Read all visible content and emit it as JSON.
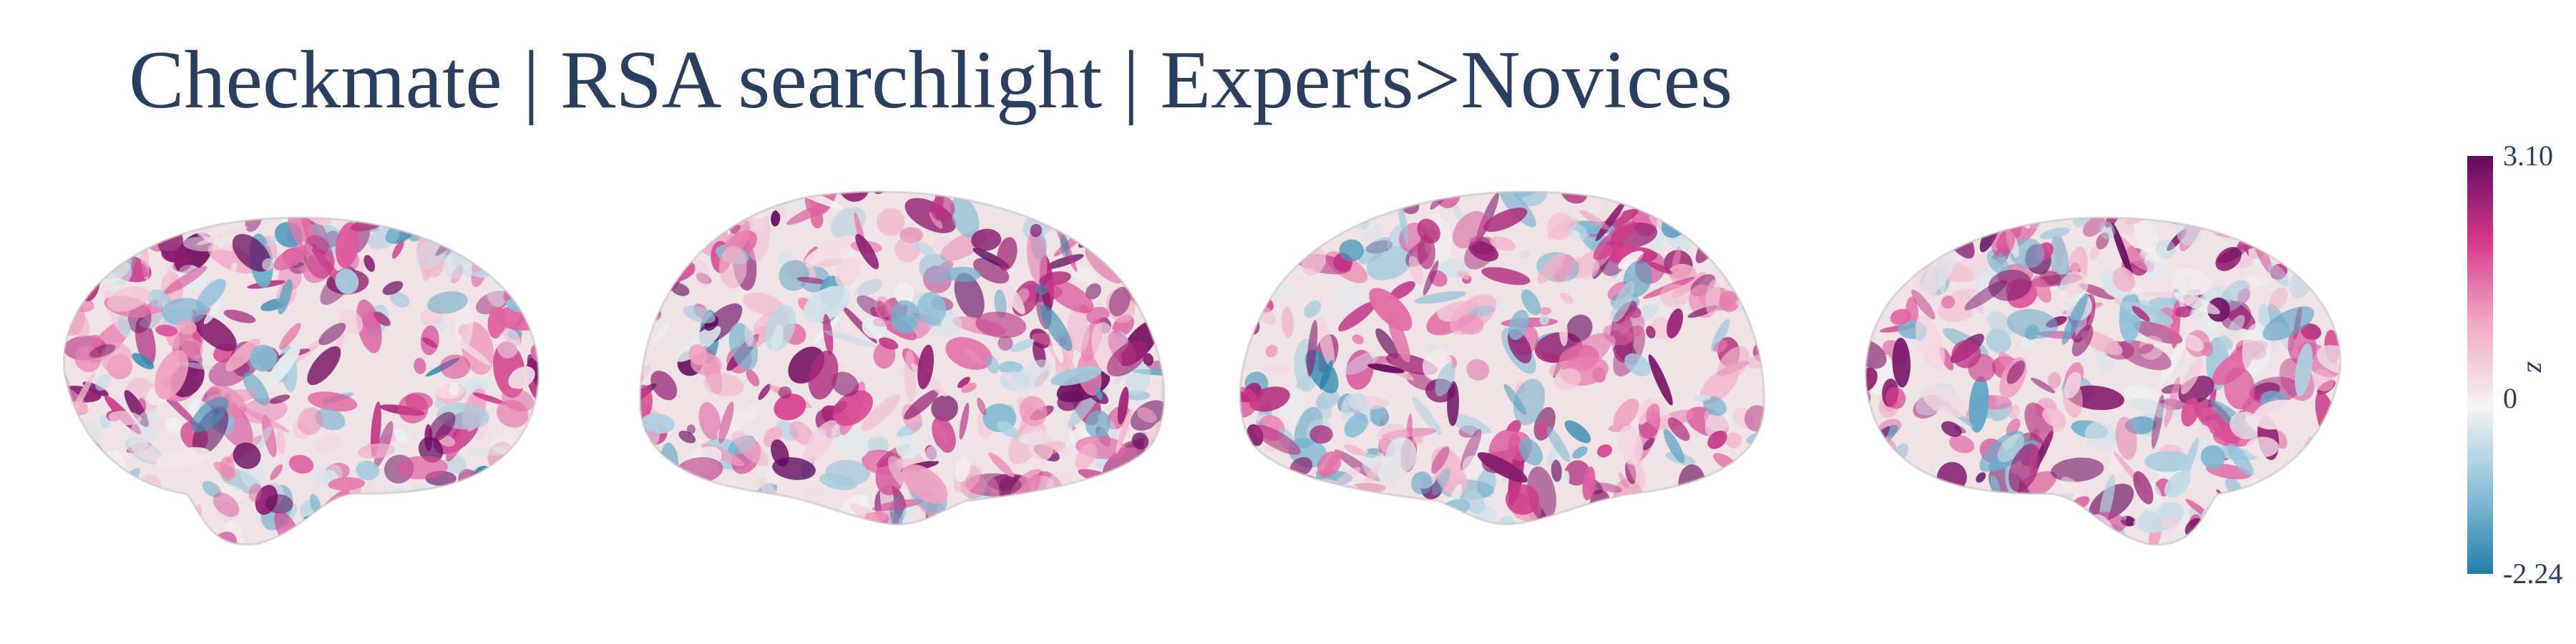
{
  "title": "Checkmate | RSA searchlight | Experts>Novices",
  "chart_data": {
    "type": "heatmap",
    "title": "Checkmate | RSA searchlight | Experts>Novices",
    "views": [
      {
        "name": "left-lateral"
      },
      {
        "name": "left-medial"
      },
      {
        "name": "right-medial"
      },
      {
        "name": "right-lateral"
      }
    ],
    "colorbar": {
      "title": "z",
      "min": -2.24,
      "max": 3.1,
      "ticks": [
        3.1,
        0,
        -2.24
      ],
      "tick_labels": [
        "3.10",
        "0",
        "-2.24"
      ],
      "colors": [
        "#1f7fa8",
        "#8fc0d8",
        "#f4f4f4",
        "#f2a9c4",
        "#d4388a",
        "#5e0a5c"
      ]
    }
  },
  "colors": {
    "title": "#2a3f5f",
    "surface_base": "#efe3e6"
  }
}
